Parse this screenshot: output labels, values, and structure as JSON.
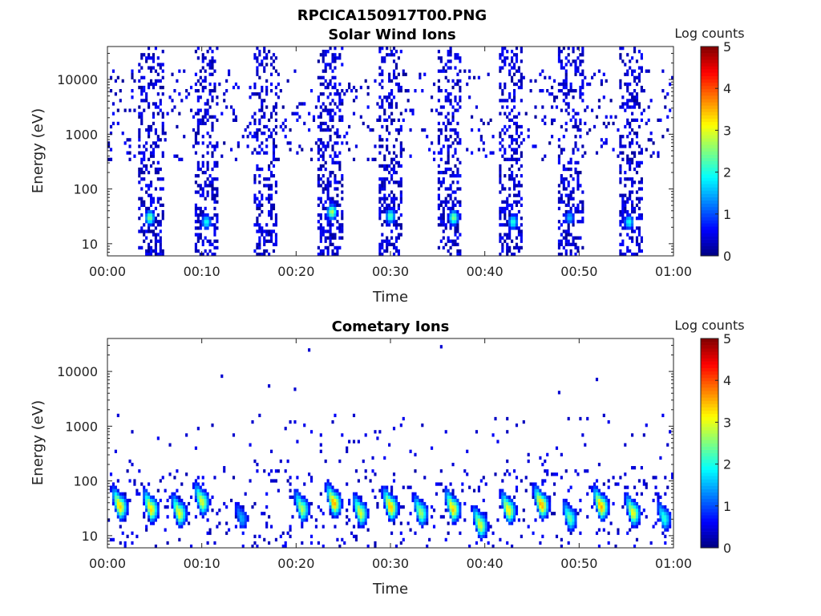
{
  "figure": {
    "filename": "RPCICA150917T00.PNG"
  },
  "chart_data": [
    {
      "type": "heatmap",
      "title": "Solar Wind Ions",
      "xlabel": "Time",
      "ylabel": "Energy (eV)",
      "x_ticks": [
        "00:00",
        "00:10",
        "00:20",
        "00:30",
        "00:40",
        "00:50",
        "01:00"
      ],
      "x_range_minutes": [
        0,
        60
      ],
      "y_scale": "log",
      "y_ticks": [
        10,
        100,
        1000,
        10000
      ],
      "y_tick_labels": [
        "10",
        "100",
        "1000",
        "10000"
      ],
      "y_range_eV": [
        6,
        40000
      ],
      "colorbar": {
        "title": "Log counts",
        "range": [
          0,
          5
        ],
        "ticks": [
          "0",
          "1",
          "2",
          "3",
          "4",
          "5"
        ],
        "colormap": "jet"
      },
      "sweeps_start_minute": [
        3.3,
        9.2,
        15.5,
        22.3,
        28.7,
        35.0,
        41.5,
        47.8,
        54.2
      ],
      "sweep_width_minutes": 2.6,
      "peaks": [
        {
          "t": 4.5,
          "e": 30,
          "logc": 2.5
        },
        {
          "t": 10.5,
          "e": 25,
          "logc": 2.0
        },
        {
          "t": 23.8,
          "e": 38,
          "logc": 2.8
        },
        {
          "t": 30.0,
          "e": 32,
          "logc": 2.3
        },
        {
          "t": 36.7,
          "e": 30,
          "logc": 2.6
        },
        {
          "t": 43.0,
          "e": 25,
          "logc": 2.1
        },
        {
          "t": 49.0,
          "e": 30,
          "logc": 1.6
        },
        {
          "t": 55.3,
          "e": 25,
          "logc": 2.0
        }
      ]
    },
    {
      "type": "heatmap",
      "title": "Cometary Ions",
      "xlabel": "Time",
      "ylabel": "Energy (eV)",
      "x_ticks": [
        "00:00",
        "00:10",
        "00:20",
        "00:30",
        "00:40",
        "00:50",
        "01:00"
      ],
      "x_range_minutes": [
        0,
        60
      ],
      "y_scale": "log",
      "y_ticks": [
        10,
        100,
        1000,
        10000
      ],
      "y_tick_labels": [
        "10",
        "100",
        "1000",
        "10000"
      ],
      "y_range_eV": [
        6,
        40000
      ],
      "colorbar": {
        "title": "Log counts",
        "range": [
          0,
          5
        ],
        "ticks": [
          "0",
          "1",
          "2",
          "3",
          "4",
          "5"
        ],
        "colormap": "jet"
      },
      "blobs": [
        {
          "t": 1.3,
          "e": 33,
          "logc": 3.4
        },
        {
          "t": 4.6,
          "e": 30,
          "logc": 3.3
        },
        {
          "t": 7.6,
          "e": 25,
          "logc": 3.1
        },
        {
          "t": 10.0,
          "e": 40,
          "logc": 3.0
        },
        {
          "t": 14.2,
          "e": 20,
          "logc": 1.5
        },
        {
          "t": 20.6,
          "e": 30,
          "logc": 2.8
        },
        {
          "t": 24.0,
          "e": 38,
          "logc": 3.6
        },
        {
          "t": 26.8,
          "e": 25,
          "logc": 3.0
        },
        {
          "t": 30.0,
          "e": 32,
          "logc": 3.5
        },
        {
          "t": 33.2,
          "e": 25,
          "logc": 2.7
        },
        {
          "t": 36.6,
          "e": 30,
          "logc": 3.4
        },
        {
          "t": 39.5,
          "e": 15,
          "logc": 3.0
        },
        {
          "t": 42.5,
          "e": 28,
          "logc": 3.2
        },
        {
          "t": 46.0,
          "e": 35,
          "logc": 3.6
        },
        {
          "t": 49.0,
          "e": 20,
          "logc": 2.4
        },
        {
          "t": 52.3,
          "e": 33,
          "logc": 3.6
        },
        {
          "t": 55.7,
          "e": 25,
          "logc": 3.1
        },
        {
          "t": 59.0,
          "e": 20,
          "logc": 2.1
        }
      ]
    }
  ]
}
